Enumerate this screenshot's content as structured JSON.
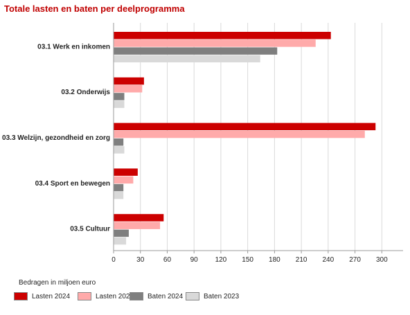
{
  "chart_data": {
    "type": "bar",
    "orientation": "horizontal",
    "title": "Totale lasten en baten per deelprogramma",
    "subtitle": "",
    "xlabel": "",
    "ylabel": "",
    "note": "Bedragen in miljoen euro",
    "categories": [
      "03.1 Werk en inkomen",
      "03.2 Onderwijs",
      "03.3 Welzijn, gezondheid en zorg",
      "03.4 Sport en bewegen",
      "03.5 Cultuur"
    ],
    "series": [
      {
        "name": "Lasten 2024",
        "color": "#cc0000",
        "values": [
          243,
          34,
          293,
          27,
          56
        ]
      },
      {
        "name": "Lasten 2023",
        "color": "#ffaaaa",
        "values": [
          226,
          32,
          281,
          22,
          52
        ]
      },
      {
        "name": "Baten 2024",
        "color": "#7f7f7f",
        "values": [
          183,
          12,
          11,
          11,
          17
        ]
      },
      {
        "name": "Baten 2023",
        "color": "#d9d9d9",
        "values": [
          164,
          12,
          12,
          11,
          14
        ]
      }
    ],
    "xlim": [
      0,
      300
    ],
    "xticks": [
      "0",
      "30",
      "60",
      "90",
      "120",
      "150",
      "180",
      "210",
      "240",
      "270",
      "300"
    ],
    "grid": "vertical",
    "legend_position": "bottom"
  }
}
